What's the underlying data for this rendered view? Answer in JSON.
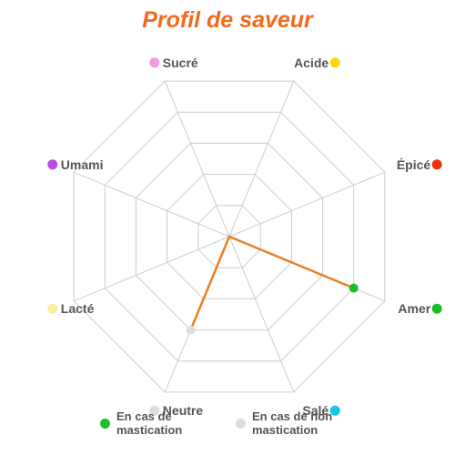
{
  "chart_data": {
    "type": "radar",
    "title": "Profil de saveur",
    "axes": [
      {
        "label": "Acide",
        "color": "#f5d90a"
      },
      {
        "label": "Épicé",
        "color": "#e8350f"
      },
      {
        "label": "Amer",
        "color": "#1dbf27"
      },
      {
        "label": "Salé",
        "color": "#19c3e6"
      },
      {
        "label": "Neutre",
        "color": "#dddddd"
      },
      {
        "label": "Lacté",
        "color": "#f8ee9f"
      },
      {
        "label": "Umami",
        "color": "#b84ee0"
      },
      {
        "label": "Sucré",
        "color": "#f29ae0"
      }
    ],
    "range": [
      0,
      5
    ],
    "levels": 5,
    "series": [
      {
        "values": {
          "Amer": 4,
          "Neutre": 3
        },
        "fill": "#fcc79a",
        "stroke": "#ec7d23",
        "markers": {
          "Amer": "#1dbf27",
          "Neutre": "#dddddd"
        }
      }
    ],
    "legend": {
      "placement": "bottom",
      "items": [
        {
          "label": "En cas de\nmastication",
          "color": "#1dbf27"
        },
        {
          "label": "En cas de non\nmastication",
          "color": "#dddddd"
        }
      ]
    }
  }
}
